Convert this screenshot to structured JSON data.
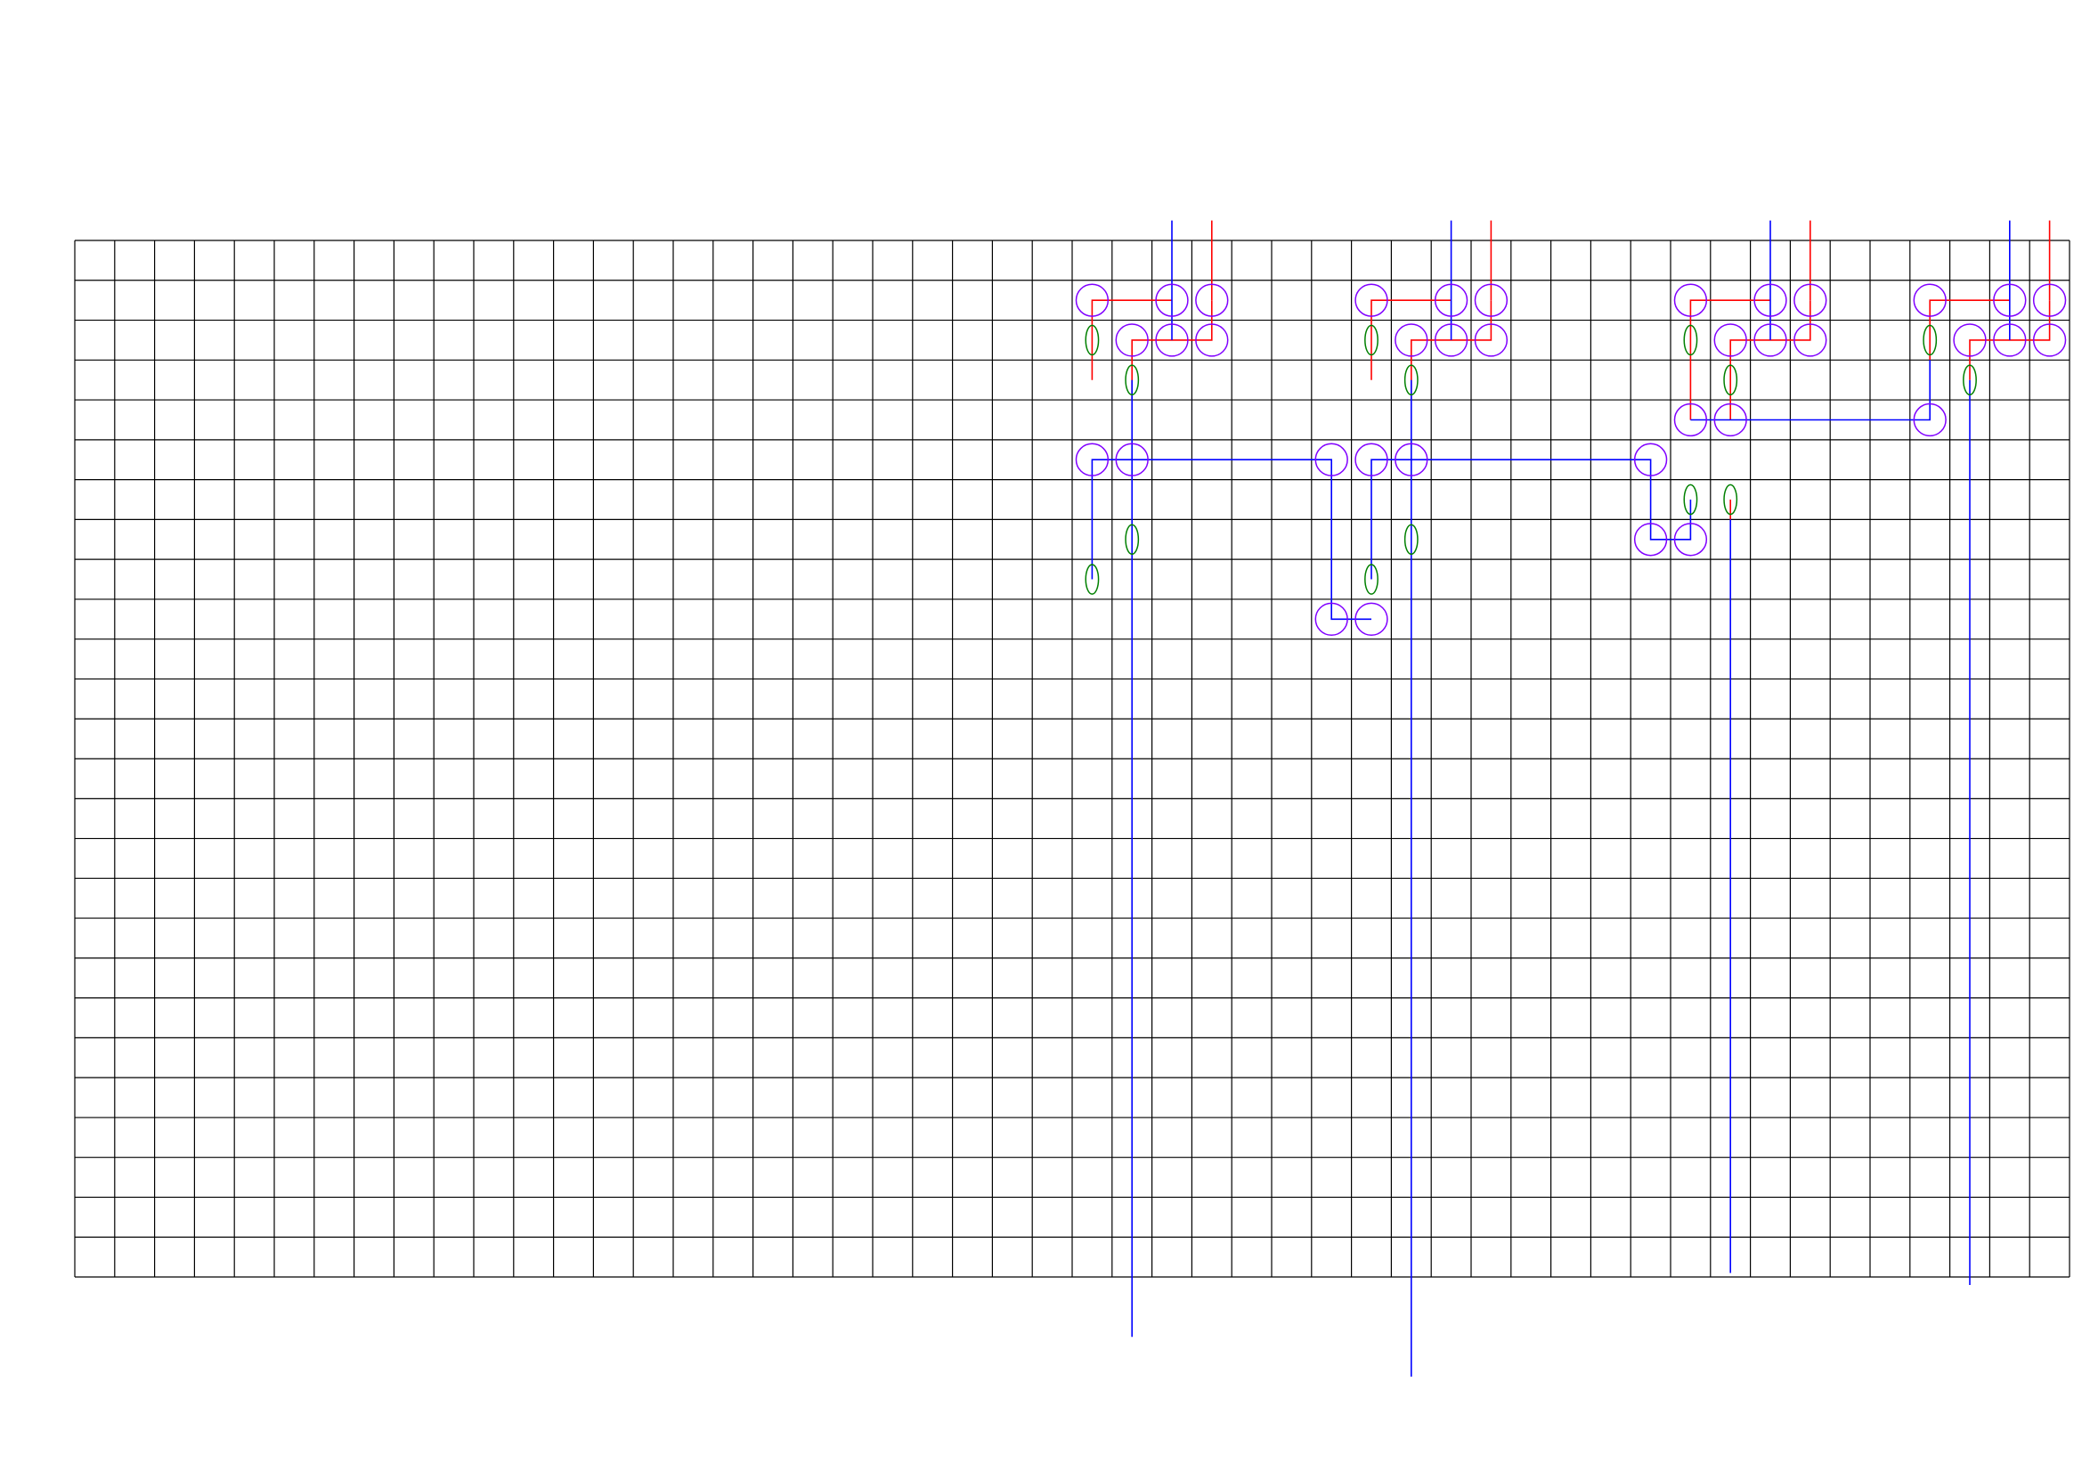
{
  "colors": {
    "background": "#ffffff",
    "grid": "#000000",
    "red_wire": "#ff0000",
    "blue_wire": "#0000ff",
    "node_ring": "#8000ff",
    "ellipse": "#008000"
  },
  "grid": {
    "columns": 50,
    "rows": 26
  },
  "elements": {
    "nodes": [
      [
        25.5,
        1.5
      ],
      [
        27.5,
        1.5
      ],
      [
        28.5,
        1.5
      ],
      [
        26.5,
        2.5
      ],
      [
        27.5,
        2.5
      ],
      [
        28.5,
        2.5
      ],
      [
        25.5,
        5.5
      ],
      [
        26.5,
        5.5
      ],
      [
        31.5,
        5.5
      ],
      [
        32.5,
        5.5
      ],
      [
        33.5,
        5.5
      ],
      [
        39.5,
        5.5
      ],
      [
        31.5,
        9.5
      ],
      [
        32.5,
        9.5
      ],
      [
        32.5,
        1.5
      ],
      [
        34.5,
        1.5
      ],
      [
        35.5,
        1.5
      ],
      [
        33.5,
        2.5
      ],
      [
        34.5,
        2.5
      ],
      [
        35.5,
        2.5
      ],
      [
        40.5,
        1.5
      ],
      [
        42.5,
        1.5
      ],
      [
        43.5,
        1.5
      ],
      [
        41.5,
        2.5
      ],
      [
        42.5,
        2.5
      ],
      [
        43.5,
        2.5
      ],
      [
        40.5,
        4.5
      ],
      [
        41.5,
        4.5
      ],
      [
        46.5,
        4.5
      ],
      [
        39.5,
        7.5
      ],
      [
        40.5,
        7.5
      ],
      [
        46.5,
        1.5
      ],
      [
        48.5,
        1.5
      ],
      [
        49.5,
        1.5
      ],
      [
        47.5,
        2.5
      ],
      [
        48.5,
        2.5
      ],
      [
        49.5,
        2.5
      ]
    ],
    "ellipses": [
      [
        25.5,
        2.5
      ],
      [
        26.5,
        3.5
      ],
      [
        26.5,
        7.5
      ],
      [
        25.5,
        8.5
      ],
      [
        32.5,
        2.5
      ],
      [
        33.5,
        3.5
      ],
      [
        33.5,
        7.5
      ],
      [
        32.5,
        8.5
      ],
      [
        40.5,
        2.5
      ],
      [
        41.5,
        3.5
      ],
      [
        40.5,
        6.5
      ],
      [
        41.5,
        6.5
      ],
      [
        46.5,
        2.5
      ],
      [
        47.5,
        3.5
      ]
    ],
    "red_paths": [
      [
        [
          27.5,
          1.5
        ],
        [
          25.5,
          1.5
        ],
        [
          25.5,
          3.5
        ]
      ],
      [
        [
          28.5,
          1.5
        ],
        [
          28.5,
          2.5
        ],
        [
          26.5,
          2.5
        ],
        [
          26.5,
          4.0
        ]
      ],
      [
        [
          28.5,
          1.5
        ],
        [
          28.5,
          -0.5
        ]
      ],
      [
        [
          34.5,
          1.5
        ],
        [
          32.5,
          1.5
        ],
        [
          32.5,
          3.5
        ]
      ],
      [
        [
          35.5,
          1.5
        ],
        [
          35.5,
          2.5
        ],
        [
          33.5,
          2.5
        ],
        [
          33.5,
          4.0
        ]
      ],
      [
        [
          35.5,
          1.5
        ],
        [
          35.5,
          -0.5
        ]
      ],
      [
        [
          42.5,
          1.5
        ],
        [
          40.5,
          1.5
        ],
        [
          40.5,
          4.5
        ]
      ],
      [
        [
          43.5,
          1.5
        ],
        [
          43.5,
          2.5
        ],
        [
          41.5,
          2.5
        ],
        [
          41.5,
          4.5
        ]
      ],
      [
        [
          41.5,
          6.5
        ],
        [
          41.5,
          7.0
        ]
      ],
      [
        [
          43.5,
          1.5
        ],
        [
          43.5,
          -0.5
        ]
      ],
      [
        [
          48.5,
          1.5
        ],
        [
          46.5,
          1.5
        ],
        [
          46.5,
          3.0
        ]
      ],
      [
        [
          49.5,
          1.5
        ],
        [
          49.5,
          2.5
        ],
        [
          47.5,
          2.5
        ],
        [
          47.5,
          3.5
        ]
      ],
      [
        [
          49.5,
          1.5
        ],
        [
          49.5,
          -0.5
        ]
      ]
    ],
    "blue_paths": [
      [
        [
          27.5,
          -0.5
        ],
        [
          27.5,
          2.5
        ]
      ],
      [
        [
          25.5,
          8.5
        ],
        [
          25.5,
          5.5
        ],
        [
          31.5,
          5.5
        ],
        [
          31.5,
          9.5
        ],
        [
          32.5,
          9.5
        ]
      ],
      [
        [
          26.5,
          3.5
        ],
        [
          26.5,
          27.5
        ]
      ],
      [
        [
          32.5,
          8.5
        ],
        [
          32.5,
          5.5
        ],
        [
          39.5,
          5.5
        ],
        [
          39.5,
          7.5
        ],
        [
          40.5,
          7.5
        ],
        [
          40.5,
          6.5
        ]
      ],
      [
        [
          34.5,
          -0.5
        ],
        [
          34.5,
          2.5
        ]
      ],
      [
        [
          33.5,
          3.5
        ],
        [
          33.5,
          28.5
        ]
      ],
      [
        [
          42.5,
          -0.5
        ],
        [
          42.5,
          2.5
        ]
      ],
      [
        [
          40.5,
          4.5
        ],
        [
          46.5,
          4.5
        ],
        [
          46.5,
          3.0
        ]
      ],
      [
        [
          41.5,
          7.0
        ],
        [
          41.5,
          25.9
        ]
      ],
      [
        [
          48.5,
          -0.5
        ],
        [
          48.5,
          2.5
        ]
      ],
      [
        [
          47.5,
          3.5
        ],
        [
          47.5,
          26.2
        ]
      ]
    ]
  }
}
